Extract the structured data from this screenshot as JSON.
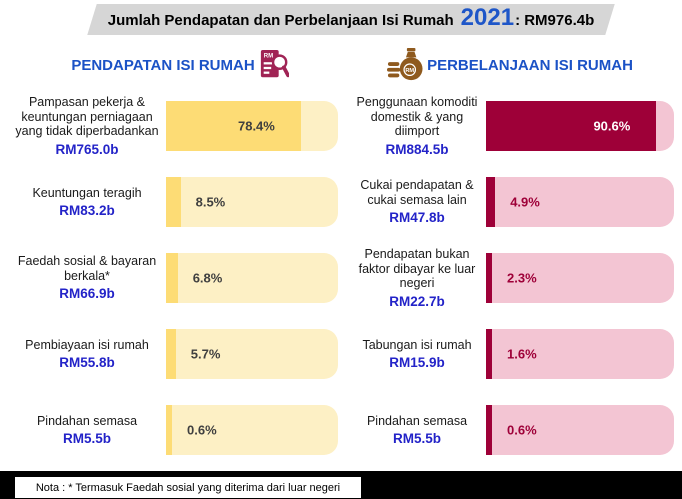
{
  "title": {
    "prefix": "Jumlah Pendapatan dan Perbelanjaan Isi Rumah",
    "year": "2021",
    "suffix": ": RM976.4b"
  },
  "note": "Nota : * Termasuk Faedah sosial yang diterima dari luar negeri",
  "colors": {
    "title_bar_gray": "#d6d6d6",
    "header_blue": "#1b52c6",
    "year_blue": "#1e56c8",
    "amount_blue": "#2323c8",
    "income_fill": "#fddc75",
    "income_track": "#fdf0c5",
    "expense_fill": "#9e0038",
    "expense_track": "#f3c5d3",
    "pct_dark": "#3f3f3f",
    "pct_white": "#ffffff",
    "pct_maroon": "#9e0038"
  },
  "chart_data": [
    {
      "type": "bar",
      "title": "PENDAPATAN ISI RUMAH",
      "icon": "document-magnifier-rm-icon",
      "unit": "%",
      "xlim": [
        0,
        100
      ],
      "categories": [
        "Pampasan pekerja & keuntungan perniagaan yang tidak diperbadankan",
        "Keuntungan teragih",
        "Faedah sosial & bayaran berkala*",
        "Pembiayaan isi rumah",
        "Pindahan semasa"
      ],
      "values": [
        78.4,
        8.5,
        6.8,
        5.7,
        0.6
      ],
      "value_labels": [
        "78.4%",
        "8.5%",
        "6.8%",
        "5.7%",
        "0.6%"
      ],
      "amounts": [
        "RM765.0b",
        "RM83.2b",
        "RM66.9b",
        "RM55.8b",
        "RM5.5b"
      ]
    },
    {
      "type": "bar",
      "title": "PERBELANJAAN ISI RUMAH",
      "icon": "money-bag-rm-icon",
      "unit": "%",
      "xlim": [
        0,
        100
      ],
      "categories": [
        "Penggunaan komoditi domestik & yang diimport",
        "Cukai pendapatan & cukai semasa lain",
        "Pendapatan bukan faktor dibayar ke luar negeri",
        "Tabungan isi rumah",
        "Pindahan semasa"
      ],
      "values": [
        90.6,
        4.9,
        2.3,
        1.6,
        0.6
      ],
      "value_labels": [
        "90.6%",
        "4.9%",
        "2.3%",
        "1.6%",
        "0.6%"
      ],
      "amounts": [
        "RM884.5b",
        "RM47.8b",
        "RM22.7b",
        "RM15.9b",
        "RM5.5b"
      ]
    }
  ]
}
